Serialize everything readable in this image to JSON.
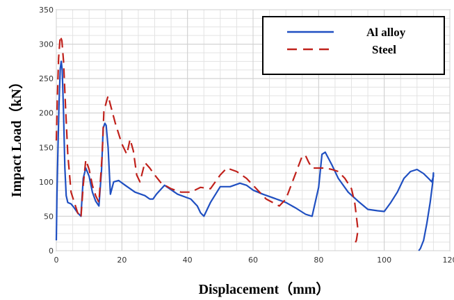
{
  "chart_data": {
    "type": "line",
    "xlabel": "Displacement（mm）",
    "ylabel": "Impact Load（kN）",
    "xlim": [
      0,
      120
    ],
    "ylim": [
      0,
      350
    ],
    "xticks": [
      0,
      20,
      40,
      60,
      80,
      100,
      120
    ],
    "yticks": [
      0,
      50,
      100,
      150,
      200,
      250,
      300,
      350
    ],
    "grid": true,
    "legend_position": "top-right",
    "series": [
      {
        "name": "Al alloy",
        "color": "#1f4fc1",
        "style": "solid",
        "x": [
          0,
          0.2,
          0.5,
          0.8,
          1.2,
          1.5,
          1.8,
          2.2,
          2.6,
          3.0,
          3.5,
          4.5,
          5.5,
          6.5,
          7.5,
          8.2,
          9.0,
          10.0,
          11.0,
          12.0,
          13.0,
          13.8,
          14.3,
          14.8,
          15.2,
          15.8,
          16.5,
          17.5,
          19.0,
          21.0,
          24.0,
          27.0,
          28.5,
          29.5,
          30.5,
          33.0,
          37.0,
          41.0,
          43.0,
          44.0,
          45.0,
          47.0,
          50.0,
          53.0,
          56.0,
          58.0,
          60.0,
          63.0,
          66.0,
          70.0,
          73.0,
          76.0,
          78.0,
          80.0,
          81.0,
          82.0,
          84.0,
          86.0,
          89.0,
          92.0,
          95.0,
          98.0,
          100.0,
          102.0,
          104.0,
          106.0,
          108.0,
          110.0,
          112.0,
          113.5,
          114.5,
          115.0,
          115.0,
          114.8,
          114.0,
          113.0,
          112.0,
          111.0,
          110.5
        ],
        "y": [
          15,
          80,
          150,
          210,
          265,
          275,
          262,
          200,
          120,
          80,
          70,
          68,
          62,
          55,
          50,
          105,
          120,
          108,
          85,
          72,
          65,
          118,
          178,
          185,
          182,
          150,
          82,
          100,
          102,
          95,
          85,
          80,
          75,
          75,
          82,
          95,
          82,
          75,
          65,
          55,
          50,
          70,
          93,
          93,
          98,
          95,
          88,
          82,
          77,
          70,
          62,
          53,
          50,
          92,
          140,
          143,
          125,
          105,
          85,
          72,
          60,
          58,
          57,
          70,
          85,
          105,
          115,
          118,
          112,
          105,
          100,
          108,
          113,
          100,
          70,
          40,
          15,
          3,
          0
        ]
      },
      {
        "name": "Steel",
        "color": "#c0211b",
        "style": "dashed",
        "x": [
          0,
          0.3,
          0.7,
          1.2,
          1.7,
          2.2,
          2.8,
          3.5,
          4.5,
          5.5,
          6.5,
          7.5,
          8.2,
          9.0,
          10.0,
          11.0,
          12.0,
          13.0,
          14.0,
          14.5,
          15.2,
          15.8,
          16.5,
          18.0,
          20.0,
          21.5,
          22.5,
          23.5,
          24.5,
          25.5,
          27.0,
          28.5,
          30.0,
          32.0,
          35.0,
          38.0,
          41.0,
          44.0,
          47.0,
          50.0,
          52.0,
          55.0,
          58.0,
          60.0,
          62.0,
          64.0,
          66.0,
          68.0,
          70.0,
          72.0,
          74.0,
          75.0,
          76.0,
          77.0,
          78.0,
          80.0,
          82.0,
          84.0,
          86.0,
          88.0,
          90.0,
          91.0,
          91.5,
          92.0,
          91.5,
          91.0,
          90.5
        ],
        "y": [
          160,
          220,
          280,
          312,
          305,
          275,
          210,
          140,
          85,
          70,
          55,
          48,
          95,
          132,
          118,
          95,
          80,
          70,
          140,
          202,
          215,
          225,
          212,
          185,
          155,
          140,
          162,
          145,
          110,
          100,
          128,
          120,
          110,
          98,
          90,
          85,
          85,
          92,
          90,
          110,
          120,
          115,
          105,
          95,
          85,
          75,
          70,
          65,
          75,
          100,
          125,
          138,
          138,
          128,
          120,
          120,
          120,
          118,
          115,
          105,
          90,
          70,
          50,
          30,
          15,
          10,
          12
        ]
      }
    ]
  }
}
